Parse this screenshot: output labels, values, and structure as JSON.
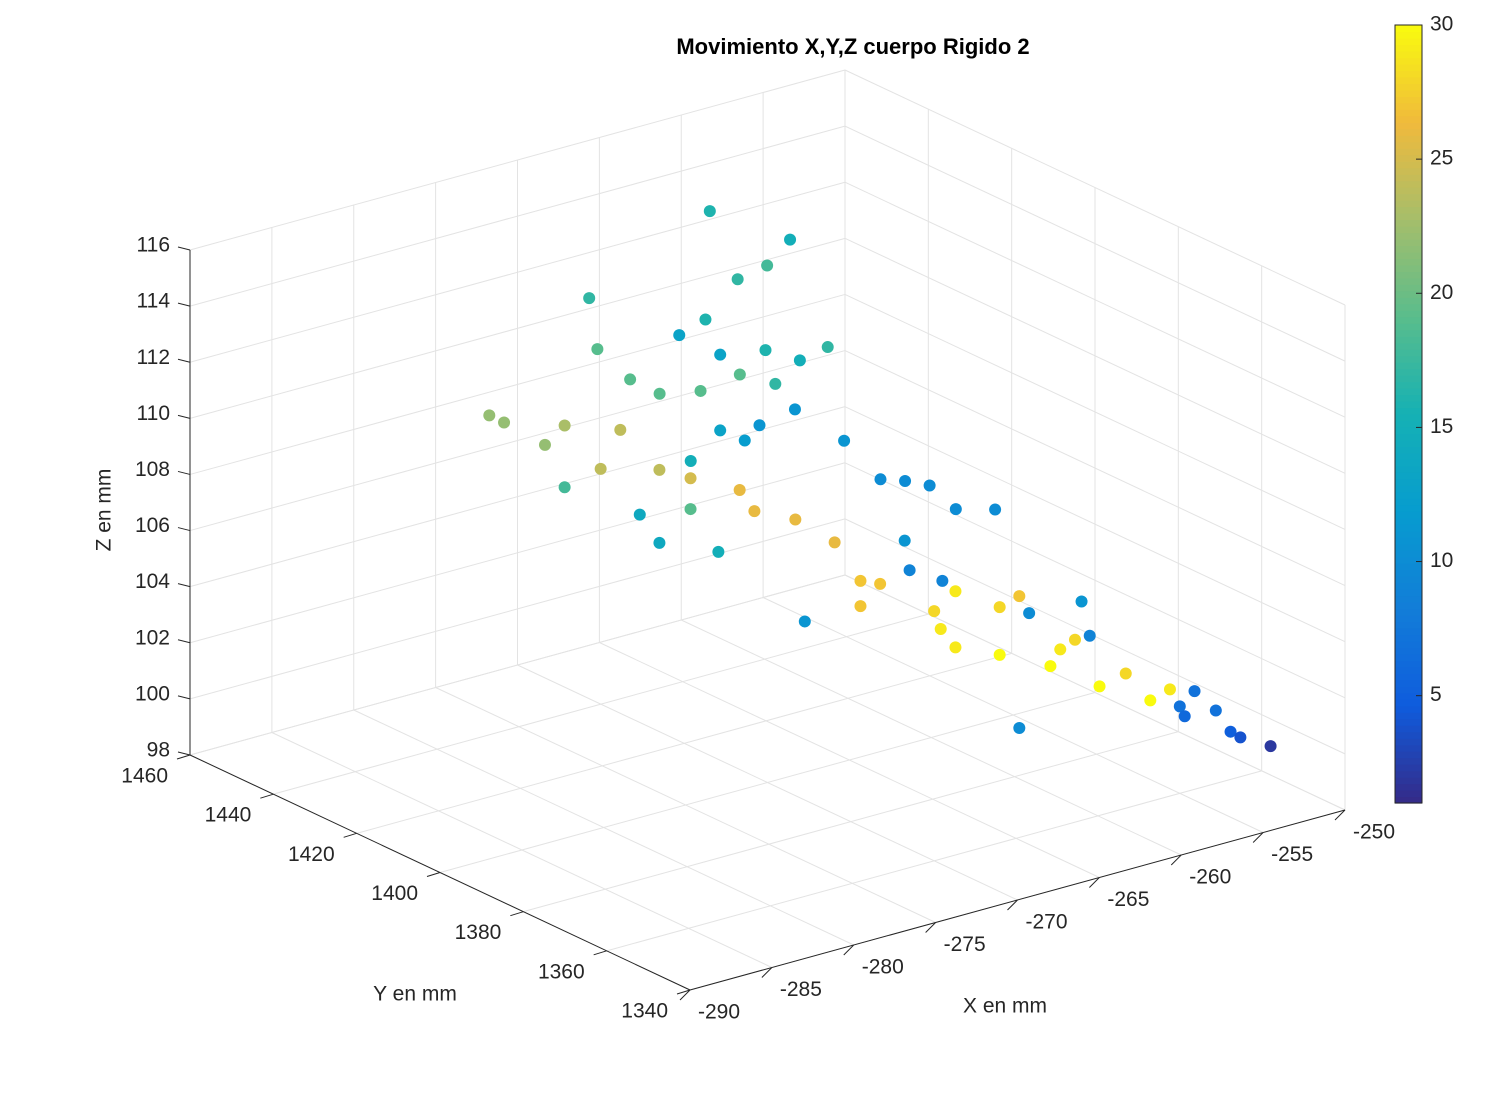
{
  "chart_data": {
    "type": "scatter3d",
    "title": "Movimiento X,Y,Z cuerpo Rigido 2",
    "x_label": "X en mm",
    "y_label": "Y en mm",
    "z_label": "Z en mm",
    "xlim": [
      -290,
      -250
    ],
    "ylim": [
      1340,
      1460
    ],
    "zlim": [
      98,
      116
    ],
    "xticks": [
      -290,
      -285,
      -280,
      -275,
      -270,
      -265,
      -260,
      -255,
      -250
    ],
    "yticks": [
      1340,
      1360,
      1380,
      1400,
      1420,
      1440,
      1460
    ],
    "zticks": [
      98,
      100,
      102,
      104,
      106,
      108,
      110,
      112,
      114,
      116
    ],
    "clim": [
      1,
      30
    ],
    "cticks": [
      5,
      10,
      15,
      20,
      25,
      30
    ],
    "colormap": "parula",
    "grid": true,
    "series": [
      {
        "x": [
          -281.9,
          -281.0,
          -278.5,
          -277.3,
          -275.3,
          -275.8,
          -277.3,
          -275.1,
          -273.9,
          -273.3,
          -271.5,
          -260.8,
          -255.9,
          -259.1,
          -257.3,
          -268.7,
          -270.3,
          -269.0,
          -266.6,
          -267.8,
          -257.4,
          -255.3,
          -253.6,
          -256.8,
          -269.6,
          -267.8,
          -266.3,
          -265.4,
          -255.6,
          -252.6,
          -277.8,
          -276.6,
          -274.7,
          -273.0,
          -276.6,
          -274.7,
          -271.7,
          -270.8,
          -268.3,
          -265.9,
          -274.5,
          -273.3,
          -274.5,
          -270.0,
          -269.6,
          -268.7,
          -271.8,
          -271.5,
          -263.1,
          -261.6,
          -260.1,
          -258.5,
          -256.1,
          -269.5,
          -268.7,
          -277.9,
          -264.8,
          -266.0,
          -264.2,
          -261.0,
          -262.3,
          -261.4,
          -260.5,
          -262.9,
          -259.9,
          -258.3,
          -256.8,
          -255.6,
          -255.0,
          -254.1,
          -254.7,
          -251.9,
          -252.0,
          -264.8,
          -266.0,
          -251.3,
          -252.8
        ],
        "y": [
          1420,
          1420,
          1420,
          1420,
          1420,
          1420,
          1420,
          1420,
          1420,
          1420,
          1420,
          1450,
          1450,
          1450,
          1450,
          1420,
          1420,
          1420,
          1420,
          1420,
          1450,
          1450,
          1450,
          1450,
          1420,
          1420,
          1420,
          1420,
          1450,
          1450,
          1400,
          1400,
          1400,
          1400,
          1400,
          1400,
          1400,
          1400,
          1400,
          1400,
          1360,
          1360,
          1360,
          1360,
          1360,
          1360,
          1360,
          1360,
          1400,
          1400,
          1400,
          1400,
          1400,
          1360,
          1360,
          1360,
          1360,
          1360,
          1360,
          1360,
          1360,
          1360,
          1360,
          1360,
          1360,
          1360,
          1360,
          1360,
          1360,
          1360,
          1360,
          1360,
          1350,
          1360,
          1360,
          1360,
          1360
        ],
        "z": [
          111.6,
          111.2,
          110.0,
          110.5,
          112.9,
          114.8,
          108.3,
          108.6,
          109.8,
          111.5,
          110.7,
          113.4,
          111.6,
          110.7,
          110.9,
          112.9,
          112.6,
          110.4,
          110.6,
          111.5,
          107.9,
          107.2,
          107.4,
          106.6,
          108.0,
          108.8,
          108.2,
          108.6,
          105.5,
          103.9,
          108.8,
          107.6,
          108.5,
          106.7,
          110.2,
          109.6,
          108.7,
          107.8,
          107.1,
          105.9,
          108.7,
          108.4,
          107.8,
          106.9,
          106.2,
          105.4,
          109.7,
          108.6,
          107.7,
          107.4,
          107.0,
          105.9,
          105.5,
          107.9,
          107.4,
          107.8,
          106.6,
          106.4,
          105.9,
          105.8,
          104.3,
          104.5,
          104.5,
          103.8,
          102.6,
          102.8,
          101.6,
          101.8,
          101.1,
          101.5,
          100.7,
          99.7,
          99.9,
          101.9,
          104.7,
          99.4,
          100.6
        ],
        "c": [
          22,
          22,
          22,
          23,
          19,
          17,
          18,
          24,
          24,
          19,
          19,
          16,
          15,
          17,
          18,
          16,
          13,
          19,
          19,
          13,
          16,
          15,
          17,
          17,
          15,
          13,
          12,
          11,
          11,
          11,
          14,
          14,
          19,
          15,
          24,
          25,
          26,
          26,
          26,
          26,
          27,
          27,
          27,
          28,
          29,
          29,
          11,
          9,
          10,
          10,
          10,
          10,
          10,
          9,
          29,
          11,
          27,
          28,
          10,
          11,
          29,
          28,
          9,
          30,
          30,
          28,
          30,
          29,
          7,
          7,
          6,
          5,
          2,
          10,
          30,
          4,
          7
        ]
      }
    ]
  }
}
